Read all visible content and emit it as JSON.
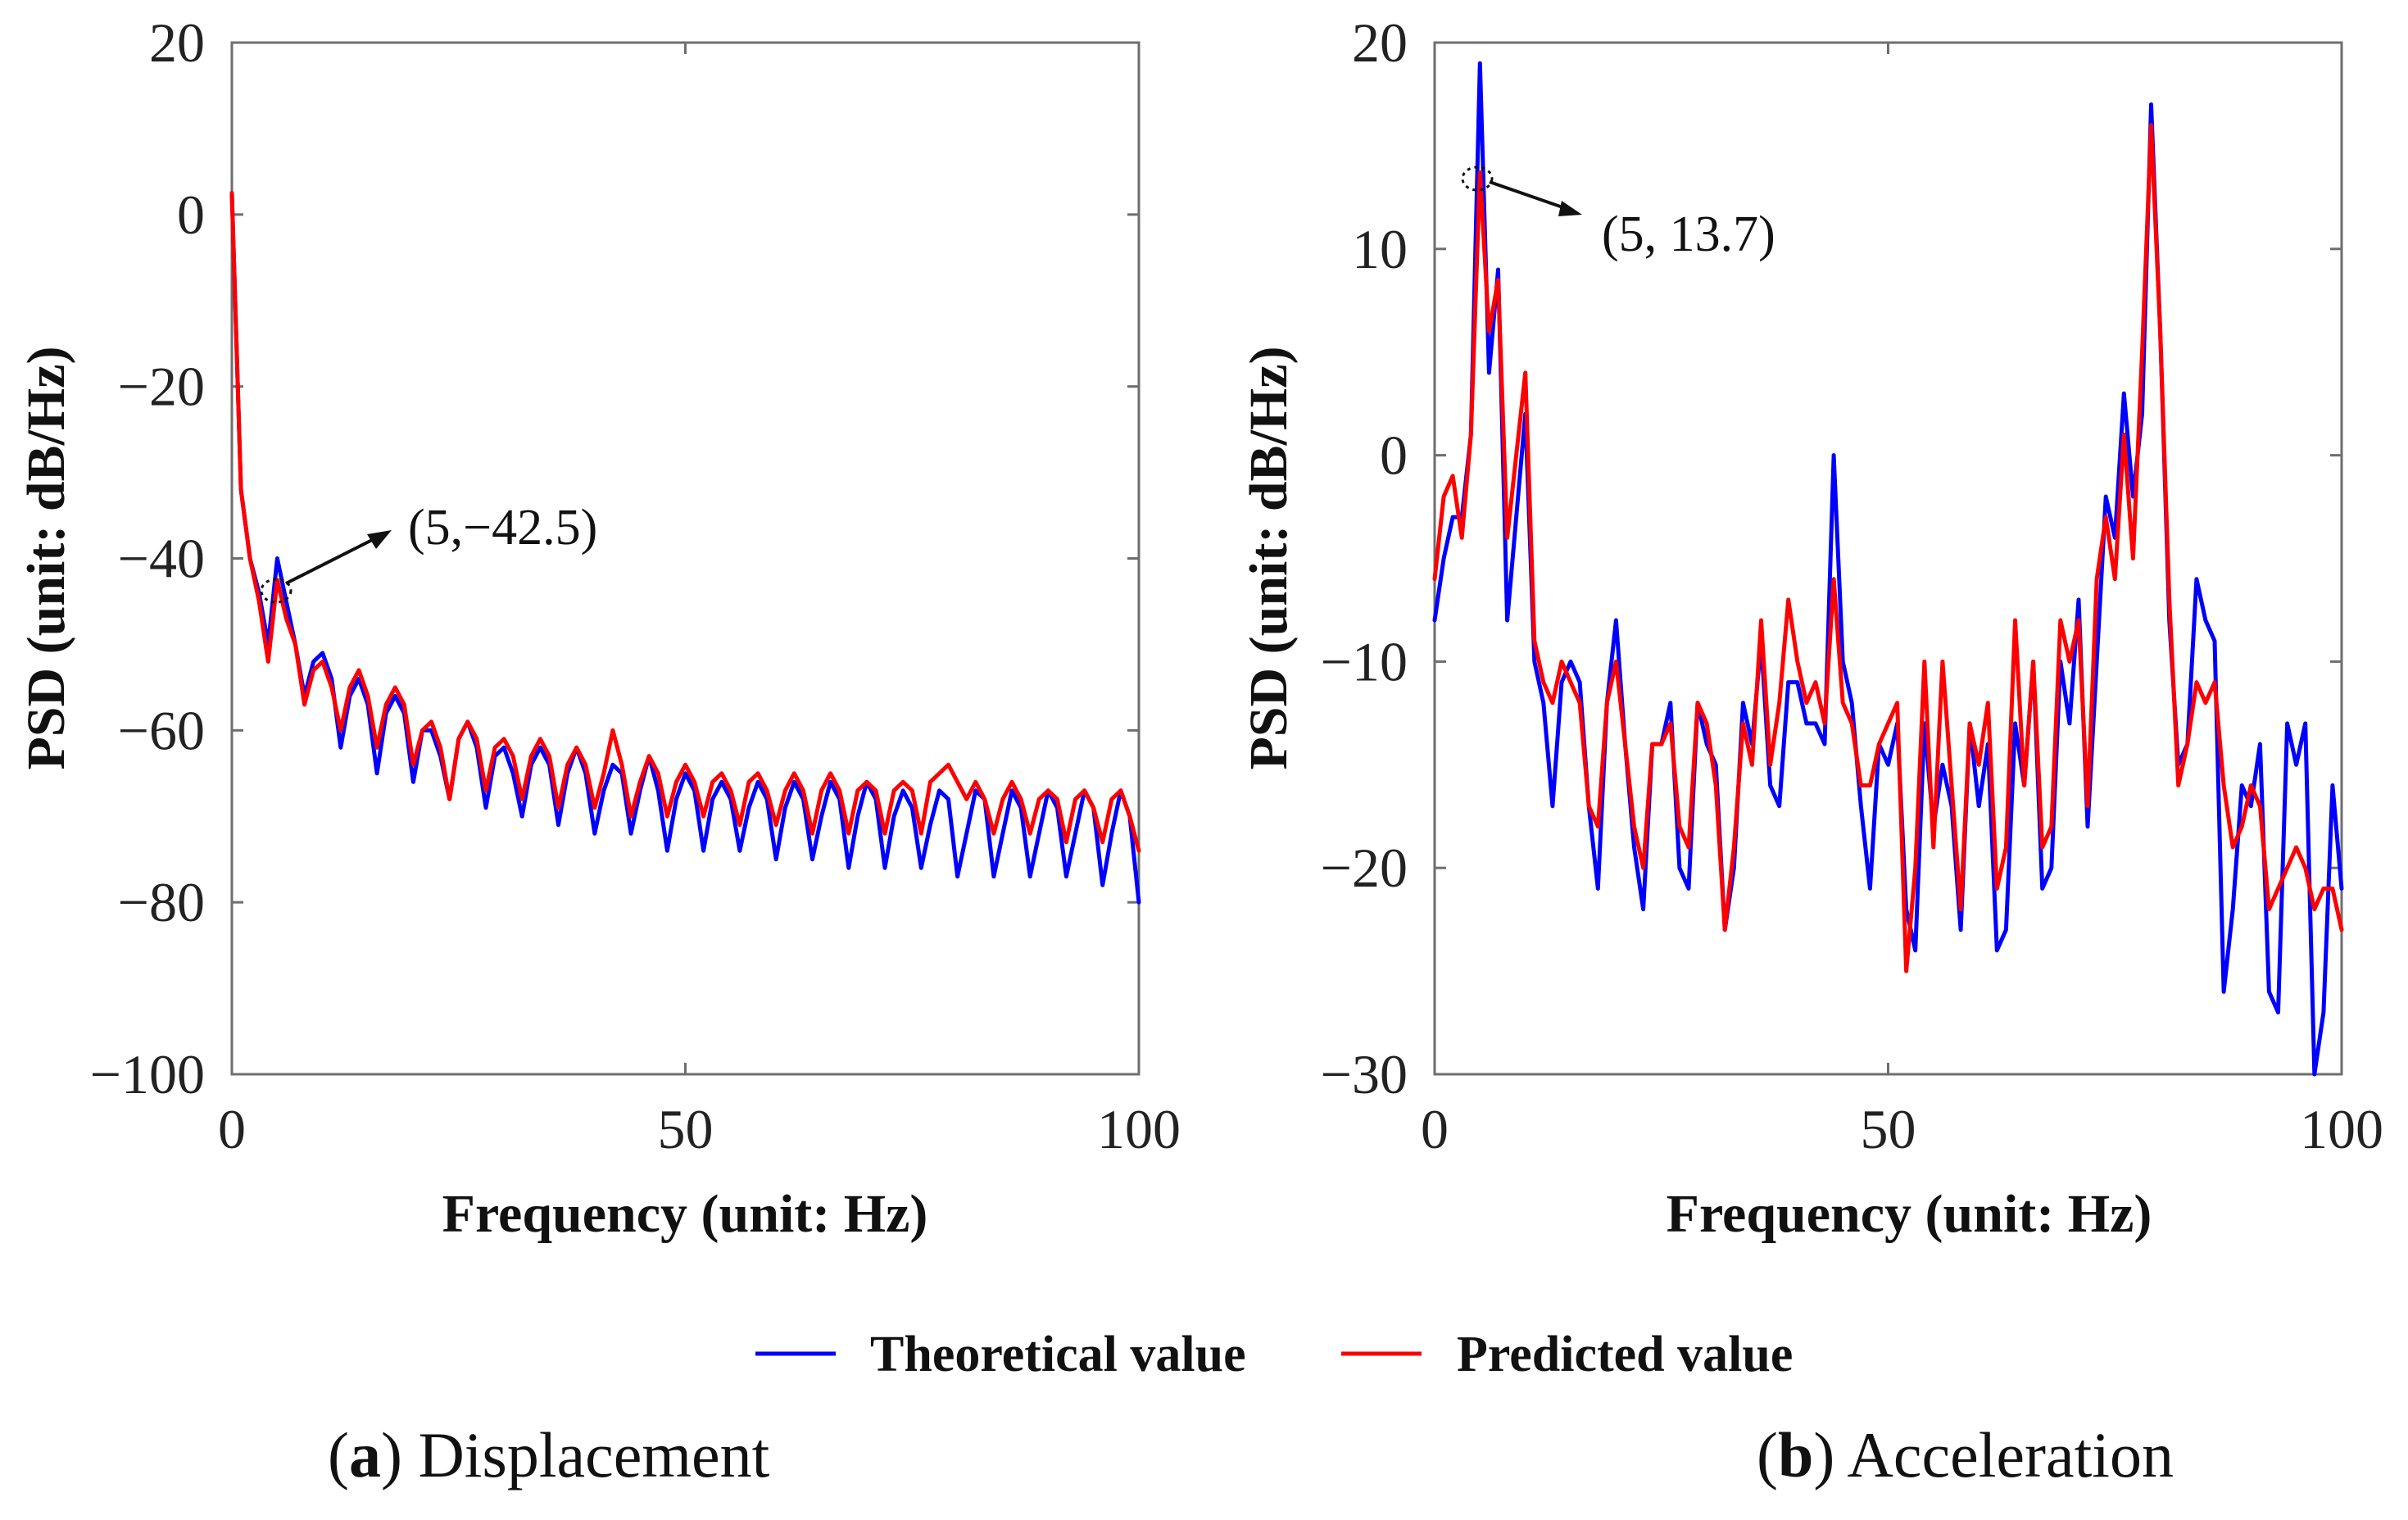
{
  "chart_data": [
    {
      "type": "line",
      "panel": "a",
      "caption_letter": "a",
      "caption_title": "Displacement",
      "xlabel": "Frequency (unit: Hz)",
      "ylabel": "PSD (unit: dB/Hz)",
      "xlim": [
        0,
        100
      ],
      "ylim": [
        -100,
        20
      ],
      "xticks": [
        0,
        50,
        100
      ],
      "yticks": [
        20,
        0,
        -20,
        -40,
        -60,
        -80,
        -100
      ],
      "ytick_labels": [
        "20",
        "0",
        "−20",
        "−40",
        "−60",
        "−80",
        "−100"
      ],
      "annotation": {
        "text": "(5,−42.5)",
        "x": 5,
        "y": -42.5
      },
      "series": [
        {
          "name": "Theoretical value",
          "color": "#0000ff",
          "x": [
            0,
            1,
            2,
            3,
            4,
            5,
            6,
            7,
            8,
            9,
            10,
            11,
            12,
            13,
            14,
            15,
            16,
            17,
            18,
            19,
            20,
            21,
            22,
            23,
            24,
            25,
            26,
            27,
            28,
            29,
            30,
            31,
            32,
            33,
            34,
            35,
            36,
            37,
            38,
            39,
            40,
            41,
            42,
            43,
            44,
            45,
            46,
            47,
            48,
            49,
            50,
            51,
            52,
            53,
            54,
            55,
            56,
            57,
            58,
            59,
            60,
            61,
            62,
            63,
            64,
            65,
            66,
            67,
            68,
            69,
            70,
            71,
            72,
            73,
            74,
            75,
            76,
            77,
            78,
            79,
            80,
            81,
            82,
            83,
            84,
            85,
            86,
            87,
            88,
            89,
            90,
            91,
            92,
            93,
            94,
            95,
            96,
            97,
            98,
            99,
            100
          ],
          "y": [
            2.5,
            -32,
            -40,
            -44,
            -50,
            -40,
            -45,
            -50,
            -56,
            -52,
            -51,
            -54,
            -62,
            -56,
            -54,
            -57,
            -65,
            -58,
            -56,
            -58,
            -66,
            -60,
            -60,
            -63,
            -68,
            -61,
            -59,
            -62,
            -69,
            -63,
            -62,
            -65,
            -70,
            -64,
            -62,
            -64,
            -71,
            -65,
            -62,
            -65,
            -72,
            -67,
            -64,
            -65,
            -72,
            -67,
            -63,
            -67,
            -74,
            -68,
            -65,
            -67,
            -74,
            -68,
            -66,
            -68,
            -74,
            -69,
            -66,
            -68,
            -75,
            -69,
            -66,
            -68,
            -75,
            -70,
            -66,
            -68,
            -76,
            -70,
            -66,
            -68,
            -76,
            -70,
            -67,
            -69,
            -76,
            -71,
            -67,
            -68,
            -77,
            -72,
            -67,
            -68,
            -77,
            -72,
            -67,
            -69,
            -77,
            -72,
            -67,
            -69,
            -77,
            -72,
            -67,
            -69,
            -78,
            -72,
            -67,
            -70,
            -80
          ]
        },
        {
          "name": "Predicted value",
          "color": "#ff0000",
          "x": [
            0,
            1,
            2,
            3,
            4,
            5,
            6,
            7,
            8,
            9,
            10,
            11,
            12,
            13,
            14,
            15,
            16,
            17,
            18,
            19,
            20,
            21,
            22,
            23,
            24,
            25,
            26,
            27,
            28,
            29,
            30,
            31,
            32,
            33,
            34,
            35,
            36,
            37,
            38,
            39,
            40,
            41,
            42,
            43,
            44,
            45,
            46,
            47,
            48,
            49,
            50,
            51,
            52,
            53,
            54,
            55,
            56,
            57,
            58,
            59,
            60,
            61,
            62,
            63,
            64,
            65,
            66,
            67,
            68,
            69,
            70,
            71,
            72,
            73,
            74,
            75,
            76,
            77,
            78,
            79,
            80,
            81,
            82,
            83,
            84,
            85,
            86,
            87,
            88,
            89,
            90,
            91,
            92,
            93,
            94,
            95,
            96,
            97,
            98,
            99,
            100
          ],
          "y": [
            2.5,
            -32,
            -40,
            -45,
            -52,
            -42.5,
            -47,
            -50,
            -57,
            -53,
            -52,
            -55,
            -60,
            -55,
            -53,
            -56,
            -62,
            -57,
            -55,
            -57,
            -64,
            -60,
            -59,
            -62,
            -68,
            -61,
            -59,
            -61,
            -67,
            -62,
            -61,
            -63,
            -68,
            -63,
            -61,
            -63,
            -69,
            -64,
            -62,
            -64,
            -69,
            -65,
            -60,
            -64,
            -70,
            -66,
            -63,
            -65,
            -70,
            -66,
            -64,
            -66,
            -70,
            -66,
            -65,
            -67,
            -71,
            -66,
            -65,
            -67,
            -71,
            -67,
            -65,
            -67,
            -72,
            -67,
            -65,
            -67,
            -72,
            -67,
            -66,
            -67,
            -72,
            -67,
            -66,
            -67,
            -72,
            -66,
            -65,
            -64,
            -66,
            -68,
            -66,
            -68,
            -72,
            -68,
            -66,
            -68,
            -72,
            -68,
            -67,
            -68,
            -73,
            -68,
            -67,
            -69,
            -73,
            -68,
            -67,
            -70,
            -74
          ]
        }
      ]
    },
    {
      "type": "line",
      "panel": "b",
      "caption_letter": "b",
      "caption_title": "Acceleration",
      "xlabel": "Frequency (unit: Hz)",
      "ylabel": "PSD (unit: dB/Hz)",
      "xlim": [
        0,
        100
      ],
      "ylim": [
        -30,
        20
      ],
      "xticks": [
        0,
        50,
        100
      ],
      "yticks": [
        20,
        10,
        0,
        -10,
        -20,
        -30
      ],
      "ytick_labels": [
        "20",
        "10",
        "0",
        "−10",
        "−20",
        "−30"
      ],
      "annotation": {
        "text": "(5, 13.7)",
        "x": 5,
        "y": 13.7
      },
      "series": [
        {
          "name": "Theoretical value",
          "color": "#0000ff",
          "x": [
            0,
            1,
            2,
            3,
            4,
            5,
            6,
            7,
            8,
            9,
            10,
            11,
            12,
            13,
            14,
            15,
            16,
            17,
            18,
            19,
            20,
            21,
            22,
            23,
            24,
            25,
            26,
            27,
            28,
            29,
            30,
            31,
            32,
            33,
            34,
            35,
            36,
            37,
            38,
            39,
            40,
            41,
            42,
            43,
            44,
            45,
            46,
            47,
            48,
            49,
            50,
            51,
            52,
            53,
            54,
            55,
            56,
            57,
            58,
            59,
            60,
            61,
            62,
            63,
            64,
            65,
            66,
            67,
            68,
            69,
            70,
            71,
            72,
            73,
            74,
            75,
            76,
            77,
            78,
            79,
            80,
            81,
            82,
            83,
            84,
            85,
            86,
            87,
            88,
            89,
            90,
            91,
            92,
            93,
            94,
            95,
            96,
            97,
            98,
            99,
            100
          ],
          "y": [
            -8,
            -5,
            -3,
            -3,
            1,
            19,
            4,
            9,
            -8,
            -3,
            2,
            -10,
            -12,
            -17,
            -11,
            -10,
            -11,
            -17,
            -21,
            -12,
            -8,
            -14,
            -19,
            -22,
            -14,
            -14,
            -12,
            -20,
            -21,
            -12,
            -14,
            -15,
            -23,
            -20,
            -12,
            -14,
            -9,
            -16,
            -17,
            -11,
            -11,
            -13,
            -13,
            -14,
            0,
            -10,
            -12,
            -17,
            -21,
            -14,
            -15,
            -13,
            -22,
            -24,
            -13,
            -18,
            -15,
            -17,
            -23,
            -13,
            -17,
            -14,
            -24,
            -23,
            -13,
            -16,
            -10,
            -21,
            -20,
            -10,
            -13,
            -7,
            -18,
            -10,
            -2,
            -4,
            3,
            -2,
            2,
            17,
            6,
            -8,
            -15,
            -14,
            -6,
            -8,
            -9,
            -26,
            -22,
            -16,
            -17,
            -14,
            -26,
            -27,
            -13,
            -15,
            -13,
            -30,
            -27,
            -16,
            -21
          ]
        },
        {
          "name": "Predicted value",
          "color": "#ff0000",
          "x": [
            0,
            1,
            2,
            3,
            4,
            5,
            6,
            7,
            8,
            9,
            10,
            11,
            12,
            13,
            14,
            15,
            16,
            17,
            18,
            19,
            20,
            21,
            22,
            23,
            24,
            25,
            26,
            27,
            28,
            29,
            30,
            31,
            32,
            33,
            34,
            35,
            36,
            37,
            38,
            39,
            40,
            41,
            42,
            43,
            44,
            45,
            46,
            47,
            48,
            49,
            50,
            51,
            52,
            53,
            54,
            55,
            56,
            57,
            58,
            59,
            60,
            61,
            62,
            63,
            64,
            65,
            66,
            67,
            68,
            69,
            70,
            71,
            72,
            73,
            74,
            75,
            76,
            77,
            78,
            79,
            80,
            81,
            82,
            83,
            84,
            85,
            86,
            87,
            88,
            89,
            90,
            91,
            92,
            93,
            94,
            95,
            96,
            97,
            98,
            99,
            100
          ],
          "y": [
            -6,
            -2,
            -1,
            -4,
            1,
            13.7,
            6,
            8.5,
            -4,
            0,
            4,
            -9,
            -11,
            -12,
            -10,
            -11,
            -12,
            -17,
            -18,
            -12,
            -10,
            -14,
            -18,
            -20,
            -14,
            -14,
            -13,
            -18,
            -19,
            -12,
            -13,
            -16,
            -23,
            -19,
            -13,
            -15,
            -8,
            -15,
            -12,
            -7,
            -10,
            -12,
            -11,
            -13,
            -6,
            -12,
            -13,
            -16,
            -16,
            -14,
            -13,
            -12,
            -25,
            -20,
            -10,
            -19,
            -10,
            -16,
            -22,
            -13,
            -15,
            -12,
            -21,
            -19,
            -8,
            -16,
            -10,
            -19,
            -18,
            -8,
            -10,
            -8,
            -17,
            -6,
            -3,
            -6,
            1,
            -5,
            5,
            16,
            6,
            -7,
            -16,
            -14,
            -11,
            -12,
            -11,
            -16,
            -19,
            -18,
            -16,
            -17,
            -22,
            -21,
            -20,
            -19,
            -20,
            -22,
            -21,
            -21,
            -23
          ]
        }
      ]
    }
  ],
  "legend": {
    "items": [
      {
        "label": "Theoretical value",
        "color": "#0000ff"
      },
      {
        "label": "Predicted value",
        "color": "#ff0000"
      }
    ]
  }
}
